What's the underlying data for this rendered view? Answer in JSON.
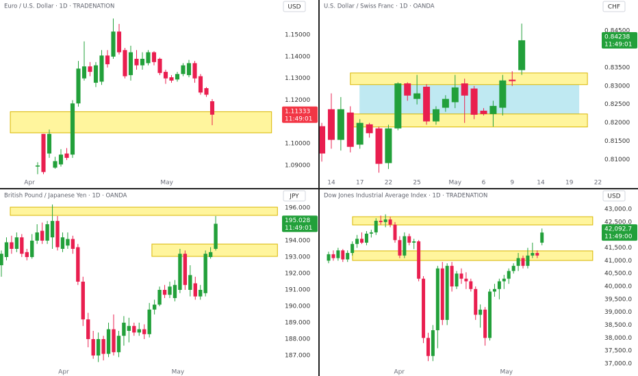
{
  "chart_data": [
    {
      "type": "candlestick",
      "title": "Euro / U.S. Dollar · 1D · TRADENATION",
      "currency": "USD",
      "up_color": "#22a03a",
      "down_color": "#e91e4f",
      "ylim": [
        1.085,
        1.166
      ],
      "yticks": [
        {
          "value": 1.09,
          "label": "1.09000"
        },
        {
          "value": 1.1,
          "label": "1.10000"
        },
        {
          "value": 1.12,
          "label": "1.12000"
        },
        {
          "value": 1.13,
          "label": "1.13000"
        },
        {
          "value": 1.14,
          "label": "1.14000"
        },
        {
          "value": 1.15,
          "label": "1.15000"
        }
      ],
      "xlim": [
        -6.47,
        42.0
      ],
      "xticks": [
        {
          "value": -1.4,
          "label": "Apr"
        },
        {
          "value": 22.2,
          "label": "May"
        }
      ],
      "open": [
        1.0895,
        1.1045,
        1.0955,
        1.089,
        1.0905,
        1.0955,
        1.095,
        1.1185,
        1.13,
        1.1355,
        1.128,
        1.1285,
        1.1405,
        1.14,
        1.1515,
        1.143,
        1.1315,
        1.139,
        1.136,
        1.137,
        1.142,
        1.139,
        1.133,
        1.1305,
        1.1295,
        1.132,
        1.1315,
        1.137,
        1.131,
        1.1255,
        1.1195
      ],
      "high": [
        1.0915,
        1.1045,
        1.1065,
        1.094,
        1.0975,
        1.098,
        1.12,
        1.138,
        1.147,
        1.1375,
        1.1375,
        1.143,
        1.143,
        1.1575,
        1.155,
        1.144,
        1.145,
        1.143,
        1.142,
        1.143,
        1.1425,
        1.1395,
        1.134,
        1.1315,
        1.133,
        1.137,
        1.1385,
        1.138,
        1.132,
        1.126,
        1.1205
      ],
      "low": [
        1.086,
        1.086,
        1.0935,
        1.0885,
        1.0895,
        1.0925,
        1.0935,
        1.117,
        1.129,
        1.131,
        1.126,
        1.127,
        1.135,
        1.139,
        1.141,
        1.13,
        1.129,
        1.134,
        1.134,
        1.136,
        1.136,
        1.1315,
        1.1275,
        1.128,
        1.1285,
        1.131,
        1.1305,
        1.128,
        1.1225,
        1.1215,
        1.1085
      ],
      "close": [
        1.09,
        1.087,
        1.1045,
        1.092,
        1.095,
        1.0935,
        1.1185,
        1.1345,
        1.1355,
        1.133,
        1.136,
        1.1405,
        1.1365,
        1.1515,
        1.142,
        1.131,
        1.142,
        1.136,
        1.139,
        1.142,
        1.1375,
        1.1325,
        1.13,
        1.129,
        1.132,
        1.136,
        1.137,
        1.13,
        1.1235,
        1.1225,
        1.11333
      ],
      "zones": [
        {
          "y": [
            1.105,
            1.11469
          ],
          "x": [
            -4.7,
            40.2
          ],
          "fill": "#fff59d",
          "stroke": "#d9b600"
        }
      ],
      "last": {
        "price": 1.11333,
        "countdown": "11:49:01",
        "color": "#f23645"
      }
    },
    {
      "type": "candlestick",
      "title": "U.S. Dollar / Swiss Franc · 1D · OANDA",
      "currency": "CHF",
      "up_color": "#22a03a",
      "down_color": "#e91e4f",
      "ylim": [
        0.8055,
        0.8533
      ],
      "yticks": [
        {
          "value": 0.81,
          "label": "0.81000"
        },
        {
          "value": 0.815,
          "label": "0.81500"
        },
        {
          "value": 0.82,
          "label": "0.82000"
        },
        {
          "value": 0.825,
          "label": "0.82500"
        },
        {
          "value": 0.83,
          "label": "0.83000"
        },
        {
          "value": 0.835,
          "label": "0.83500"
        },
        {
          "value": 0.845,
          "label": "0.84500"
        }
      ],
      "xlim": [
        -0.22,
        29.4
      ],
      "xticks": [
        {
          "value": 1,
          "label": "14"
        },
        {
          "value": 4,
          "label": "17"
        },
        {
          "value": 7,
          "label": "22"
        },
        {
          "value": 10,
          "label": "25"
        },
        {
          "value": 14,
          "label": "May"
        },
        {
          "value": 17,
          "label": "6"
        },
        {
          "value": 20,
          "label": "9"
        },
        {
          "value": 23,
          "label": "14"
        },
        {
          "value": 26,
          "label": "19"
        },
        {
          "value": 29,
          "label": "22"
        }
      ],
      "open": [
        0.8191,
        0.8237,
        0.8154,
        0.8228,
        0.8141,
        0.8196,
        0.8185,
        0.8091,
        0.8185,
        0.8307,
        0.8265,
        0.8298,
        0.8204,
        0.8241,
        0.8256,
        0.8307,
        0.8293,
        0.8233,
        0.8224,
        0.8241,
        0.8317,
        0.8343
      ],
      "high": [
        0.82,
        0.828,
        0.827,
        0.8245,
        0.821,
        0.82,
        0.819,
        0.8195,
        0.831,
        0.831,
        0.833,
        0.8305,
        0.8245,
        0.8275,
        0.833,
        0.832,
        0.83,
        0.824,
        0.826,
        0.833,
        0.834,
        0.8469
      ],
      "low": [
        0.8095,
        0.813,
        0.8125,
        0.812,
        0.813,
        0.816,
        0.8065,
        0.8075,
        0.818,
        0.826,
        0.825,
        0.8195,
        0.8195,
        0.823,
        0.824,
        0.82,
        0.821,
        0.822,
        0.819,
        0.822,
        0.83,
        0.833
      ],
      "close": [
        0.8117,
        0.8154,
        0.8237,
        0.8135,
        0.82,
        0.8172,
        0.8089,
        0.8185,
        0.8307,
        0.8274,
        0.828,
        0.8204,
        0.8237,
        0.8265,
        0.8296,
        0.8274,
        0.8222,
        0.8224,
        0.8246,
        0.8315,
        0.8313,
        0.84238
      ],
      "zones": [
        {
          "y": [
            0.82241,
            0.83037
          ],
          "x": [
            4.0,
            27.0
          ],
          "fill": "#bfe9f2",
          "stroke": "#bfe9f2"
        },
        {
          "y": [
            0.83037,
            0.83352
          ],
          "x": [
            3.0,
            27.9
          ],
          "fill": "#fff59d",
          "stroke": "#d9b600"
        },
        {
          "y": [
            0.81889,
            0.82241
          ],
          "x": [
            3.0,
            27.9
          ],
          "fill": "#fff59d",
          "stroke": "#d9b600"
        }
      ],
      "last": {
        "price": 0.84238,
        "countdown": "11:49:01",
        "color": "#22a03a"
      }
    },
    {
      "type": "candlestick",
      "title": "British Pound / Japanese Yen · 1D · OANDA",
      "currency": "JPY",
      "up_color": "#22a03a",
      "down_color": "#e91e4f",
      "ylim": [
        186.375,
        197.125
      ],
      "yticks": [
        {
          "value": 187,
          "label": "187.000"
        },
        {
          "value": 188,
          "label": "188.000"
        },
        {
          "value": 189,
          "label": "189.000"
        },
        {
          "value": 190,
          "label": "190.000"
        },
        {
          "value": 191,
          "label": "191.000"
        },
        {
          "value": 192,
          "label": "192.000"
        },
        {
          "value": 193,
          "label": "193.000"
        },
        {
          "value": 194,
          "label": "194.000"
        },
        {
          "value": 196,
          "label": "196.000"
        }
      ],
      "xlim": [
        -0.27,
        55.0
      ],
      "xticks": [
        {
          "value": 12.2,
          "label": "Apr"
        },
        {
          "value": 34.6,
          "label": "May"
        }
      ],
      "open": [
        192.5,
        193.0,
        193.9,
        193.5,
        194.2,
        193.3,
        193.0,
        194.0,
        194.6,
        194.0,
        194.2,
        195.2,
        193.5,
        193.7,
        194.1,
        193.6,
        191.5,
        189.2,
        188.0,
        187.0,
        188.0,
        187.1,
        188.6,
        187.2,
        188.2,
        188.5,
        188.8,
        188.4,
        188.6,
        188.3,
        189.8,
        190.1,
        191.0,
        190.7,
        190.5,
        191.0,
        193.2,
        191.0,
        191.4,
        190.6,
        190.8,
        193.0,
        193.5
      ],
      "high": [
        193.4,
        194.2,
        194.3,
        194.5,
        194.4,
        193.5,
        194.4,
        195.0,
        195.1,
        195.2,
        196.2,
        195.5,
        194.5,
        194.5,
        194.3,
        193.8,
        191.8,
        189.6,
        188.5,
        188.4,
        188.2,
        189.0,
        189.5,
        188.5,
        189.4,
        189.3,
        189.0,
        189.0,
        188.9,
        190.2,
        190.4,
        191.2,
        191.3,
        191.5,
        191.6,
        193.5,
        193.4,
        192.5,
        191.8,
        191.3,
        193.4,
        193.6,
        195.5
      ],
      "low": [
        191.8,
        192.8,
        193.2,
        193.3,
        193.0,
        192.8,
        192.9,
        193.8,
        193.8,
        193.8,
        193.5,
        193.4,
        193.3,
        193.5,
        193.2,
        191.3,
        188.8,
        187.5,
        186.8,
        186.6,
        186.7,
        186.9,
        187.0,
        186.9,
        187.6,
        187.8,
        188.2,
        188.2,
        188.0,
        188.1,
        189.5,
        190.0,
        190.5,
        190.5,
        190.3,
        190.8,
        191.0,
        190.6,
        190.4,
        190.4,
        190.6,
        192.9,
        193.4
      ],
      "close": [
        193.2,
        193.9,
        193.5,
        194.2,
        193.2,
        193.0,
        194.0,
        194.5,
        194.0,
        195.0,
        195.2,
        193.6,
        194.2,
        194.1,
        193.5,
        191.5,
        189.2,
        188.0,
        187.0,
        188.0,
        187.1,
        188.6,
        187.2,
        188.2,
        189.0,
        188.8,
        188.4,
        188.6,
        188.3,
        189.8,
        190.1,
        191.0,
        190.7,
        191.2,
        191.3,
        193.2,
        191.3,
        191.9,
        190.6,
        191.0,
        193.2,
        193.3,
        195.028
      ],
      "zones": [
        {
          "y": [
            195.54,
            196.04
          ],
          "x": [
            1.74,
            54.1
          ],
          "fill": "#fff59d",
          "stroke": "#d9b600"
        },
        {
          "y": [
            193.04,
            193.79
          ],
          "x": [
            29.5,
            54.1
          ],
          "fill": "#fff59d",
          "stroke": "#d9b600"
        }
      ],
      "last": {
        "price": 195.028,
        "countdown": "11:49:01",
        "color": "#22a03a"
      }
    },
    {
      "type": "candlestick",
      "title": "Dow Jones Industrial Average Index · 1D · TRADENATION",
      "currency": "USD",
      "up_color": "#22a03a",
      "down_color": "#e91e4f",
      "ylim": [
        36920,
        43770
      ],
      "yticks": [
        {
          "value": 37000,
          "label": "37,000.0"
        },
        {
          "value": 37500,
          "label": "37,500.0"
        },
        {
          "value": 38000,
          "label": "38,000.0"
        },
        {
          "value": 38500,
          "label": "38,500.0"
        },
        {
          "value": 39000,
          "label": "39,000.0"
        },
        {
          "value": 39500,
          "label": "39,500.0"
        },
        {
          "value": 40000,
          "label": "40,000.0"
        },
        {
          "value": 40500,
          "label": "40,500.0"
        },
        {
          "value": 41000,
          "label": "41,000.0"
        },
        {
          "value": 41500,
          "label": "41,500.0"
        },
        {
          "value": 42500,
          "label": "42,500.0"
        },
        {
          "value": 43000,
          "label": "43,000.0"
        }
      ],
      "xlim": [
        -1.88,
        57.6
      ],
      "xticks": [
        {
          "value": 14.9,
          "label": "Apr"
        },
        {
          "value": 37.5,
          "label": "May"
        }
      ],
      "open": [
        41000,
        41250,
        41100,
        41400,
        41050,
        41300,
        41650,
        41850,
        41700,
        42050,
        42100,
        42550,
        42500,
        42600,
        42400,
        41800,
        41200,
        41950,
        41700,
        41750,
        40300,
        38000,
        37300,
        38300,
        40700,
        38700,
        40800,
        40000,
        40500,
        40300,
        40200,
        39900,
        38900,
        39100,
        38000,
        39800,
        39900,
        40200,
        40300,
        40600,
        40800,
        41100,
        40800,
        41200,
        41300,
        41700
      ],
      "high": [
        41350,
        41400,
        41500,
        41450,
        41400,
        41750,
        42000,
        42100,
        42150,
        42200,
        42650,
        42750,
        42800,
        42700,
        42500,
        41950,
        42100,
        42050,
        41850,
        41800,
        40400,
        38200,
        38500,
        40800,
        40950,
        40900,
        40950,
        40600,
        40700,
        40550,
        40300,
        40000,
        39300,
        39200,
        39900,
        40100,
        40300,
        40450,
        40700,
        40900,
        41300,
        41200,
        41500,
        41700,
        41400,
        42250
      ],
      "low": [
        40900,
        41000,
        41000,
        40950,
        40950,
        41200,
        41500,
        41650,
        41600,
        41900,
        42000,
        42400,
        42300,
        42300,
        41700,
        41100,
        41100,
        41600,
        41450,
        40200,
        37800,
        37100,
        37100,
        37600,
        38500,
        38500,
        39800,
        39900,
        40100,
        39900,
        39800,
        38700,
        38400,
        37700,
        37900,
        39600,
        39500,
        39900,
        40100,
        40500,
        40600,
        40700,
        40700,
        41100,
        41100,
        41600
      ],
      "close": [
        41250,
        41100,
        41400,
        41050,
        41300,
        41650,
        41850,
        41700,
        42050,
        42100,
        42550,
        42500,
        42600,
        42400,
        41800,
        41200,
        41950,
        41700,
        41750,
        40300,
        38000,
        37300,
        38300,
        40700,
        38700,
        40800,
        40000,
        40500,
        40300,
        40200,
        39900,
        38900,
        39100,
        38000,
        39800,
        39900,
        40200,
        40300,
        40600,
        40800,
        41100,
        40800,
        41200,
        41300,
        41200,
        42092.7
      ],
      "zones": [
        {
          "y": [
            42389,
            42708
          ],
          "x": [
            5.05,
            55.7
          ],
          "fill": "#fff59d",
          "stroke": "#d9b600"
        },
        {
          "y": [
            41009,
            41381
          ],
          "x": [
            5.05,
            55.7
          ],
          "fill": "#fff59d",
          "stroke": "#d9b600"
        }
      ],
      "last": {
        "price": {
          "value": 42092.7,
          "label": "42,092.7"
        },
        "countdown": "11:49:00",
        "color": "#22a03a"
      }
    }
  ]
}
